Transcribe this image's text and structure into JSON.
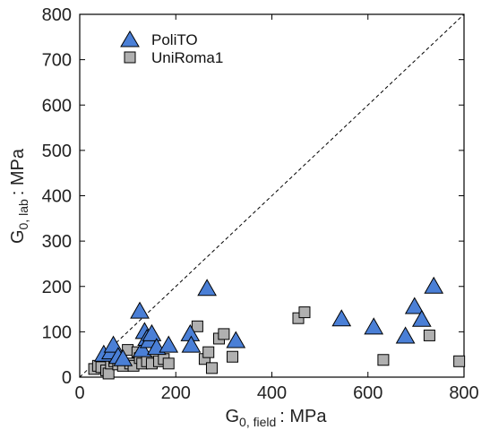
{
  "chart_data": {
    "type": "scatter",
    "xlabel": {
      "main": "G",
      "sub": "0, field",
      "unit": ": MPa"
    },
    "ylabel": {
      "main": "G",
      "sub": "0, lab",
      "unit": ": MPa"
    },
    "xlim": [
      0,
      800
    ],
    "ylim": [
      0,
      800
    ],
    "xticks": [
      0,
      200,
      400,
      600,
      800
    ],
    "yticks": [
      0,
      100,
      200,
      300,
      400,
      500,
      600,
      700,
      800
    ],
    "grid": false,
    "legend": "top-left",
    "reference_line": {
      "style": "dashed",
      "from": [
        0,
        0
      ],
      "to": [
        800,
        800
      ]
    },
    "series": [
      {
        "name": "PoliTO",
        "marker": "triangle",
        "color": "#4a7fd6",
        "points": [
          [
            50,
            50
          ],
          [
            65,
            55
          ],
          [
            70,
            70
          ],
          [
            80,
            45
          ],
          [
            90,
            40
          ],
          [
            125,
            145
          ],
          [
            130,
            60
          ],
          [
            135,
            100
          ],
          [
            140,
            85
          ],
          [
            145,
            80
          ],
          [
            150,
            95
          ],
          [
            160,
            65
          ],
          [
            185,
            70
          ],
          [
            230,
            95
          ],
          [
            232,
            70
          ],
          [
            265,
            195
          ],
          [
            325,
            80
          ],
          [
            545,
            128
          ],
          [
            612,
            110
          ],
          [
            678,
            90
          ],
          [
            697,
            155
          ],
          [
            712,
            127
          ],
          [
            737,
            200
          ]
        ]
      },
      {
        "name": "UniRoma1",
        "marker": "square",
        "color": "#b0b0b0",
        "points": [
          [
            30,
            18
          ],
          [
            38,
            25
          ],
          [
            45,
            22
          ],
          [
            55,
            15
          ],
          [
            60,
            8
          ],
          [
            65,
            30
          ],
          [
            72,
            35
          ],
          [
            80,
            28
          ],
          [
            90,
            25
          ],
          [
            100,
            60
          ],
          [
            105,
            30
          ],
          [
            112,
            25
          ],
          [
            120,
            55
          ],
          [
            125,
            42
          ],
          [
            130,
            30
          ],
          [
            140,
            35
          ],
          [
            150,
            30
          ],
          [
            165,
            35
          ],
          [
            175,
            40
          ],
          [
            185,
            30
          ],
          [
            245,
            112
          ],
          [
            260,
            40
          ],
          [
            268,
            55
          ],
          [
            275,
            20
          ],
          [
            290,
            85
          ],
          [
            300,
            95
          ],
          [
            318,
            45
          ],
          [
            455,
            130
          ],
          [
            468,
            143
          ],
          [
            632,
            38
          ],
          [
            728,
            92
          ],
          [
            790,
            35
          ]
        ]
      }
    ]
  }
}
